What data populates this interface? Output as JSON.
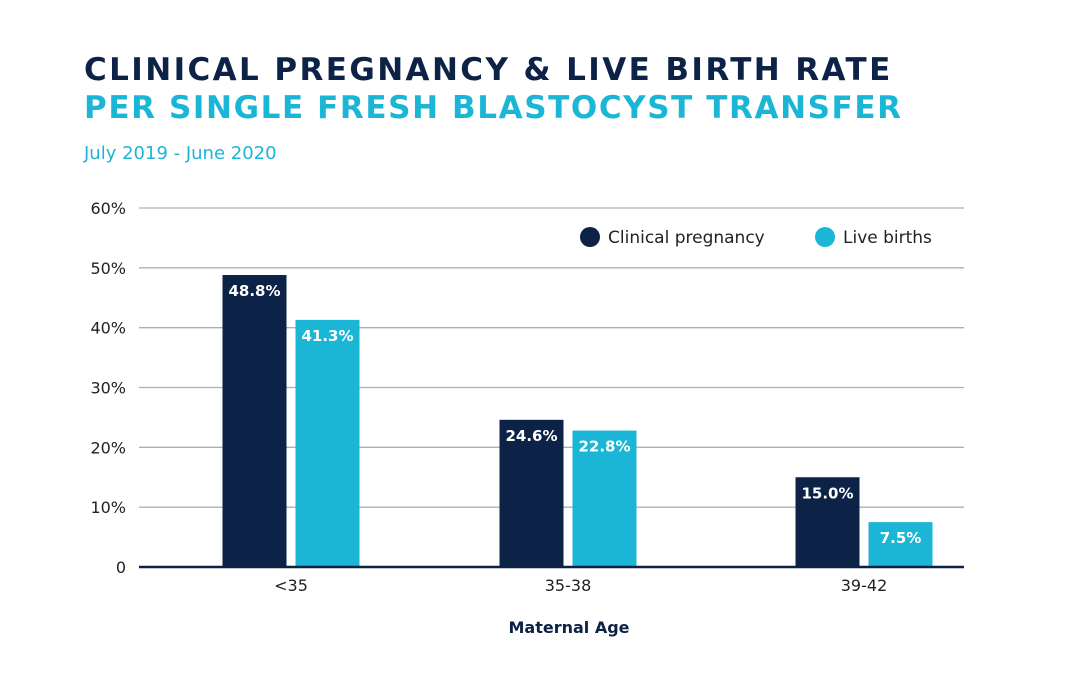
{
  "title_line1": "CLINICAL PREGNANCY & LIVE BIRTH RATE",
  "title_line2": "PER SINGLE FRESH BLASTOCYST TRANSFER",
  "subtitle": "July 2019 - June 2020",
  "colors": {
    "navy": "#0d2247",
    "cyan": "#1bb6d6",
    "grid": "#a9b0bb"
  },
  "chart_data": {
    "type": "bar",
    "categories": [
      "<35",
      "35-38",
      "39-42"
    ],
    "series": [
      {
        "name": "Clinical pregnancy",
        "values": [
          48.8,
          24.6,
          15.0
        ],
        "labels": [
          "48.8%",
          "24.6%",
          "15.0%"
        ]
      },
      {
        "name": "Live births",
        "values": [
          41.3,
          22.8,
          7.5
        ],
        "labels": [
          "41.3%",
          "22.8%",
          "7.5%"
        ]
      }
    ],
    "xlabel": "Maternal Age",
    "ylabel": "",
    "ylim": [
      0,
      60
    ],
    "yticks": [
      "0",
      "10%",
      "20%",
      "30%",
      "40%",
      "50%",
      "60%"
    ],
    "grid": true,
    "legend_position": "top-right"
  }
}
